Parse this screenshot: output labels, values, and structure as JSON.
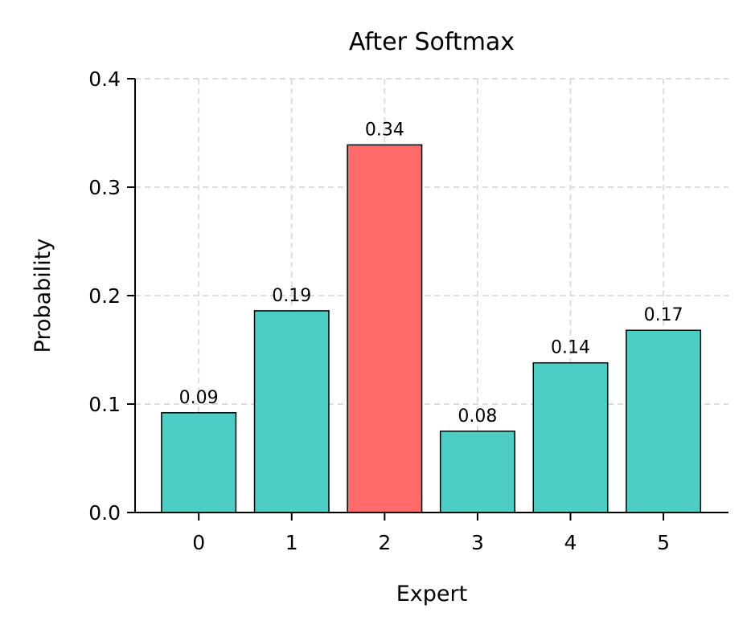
{
  "chart_data": {
    "type": "bar",
    "title": "After Softmax",
    "xlabel": "Expert",
    "ylabel": "Probability",
    "categories": [
      "0",
      "1",
      "2",
      "3",
      "4",
      "5"
    ],
    "values": [
      0.092,
      0.186,
      0.339,
      0.075,
      0.138,
      0.168
    ],
    "data_labels": [
      "0.09",
      "0.19",
      "0.34",
      "0.08",
      "0.14",
      "0.17"
    ],
    "highlight_index": 2,
    "colors": {
      "default": "#4ECDC4",
      "highlight": "#FF6B6B",
      "edge": "#000000",
      "grid": "#dddddd"
    },
    "ylim": [
      0,
      0.4
    ],
    "yticks": [
      "0.0",
      "0.1",
      "0.2",
      "0.3",
      "0.4"
    ],
    "grid": true,
    "grid_style": "dashed"
  }
}
